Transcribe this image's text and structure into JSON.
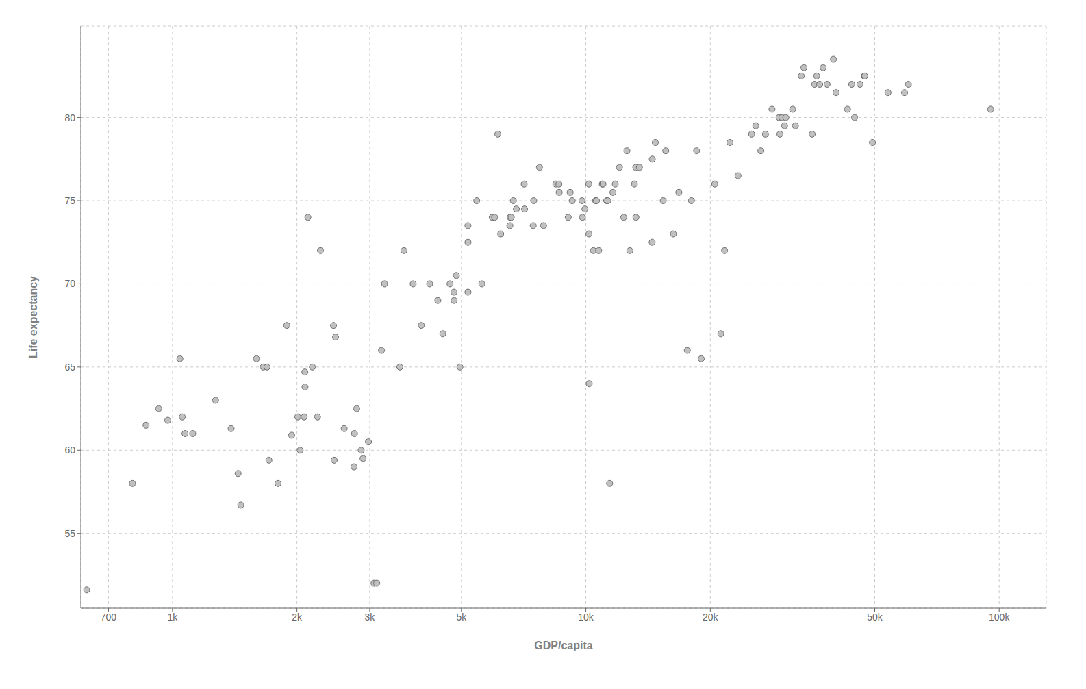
{
  "chart_data": {
    "type": "scatter",
    "xlabel": "GDP/capita",
    "ylabel": "Life expectancy",
    "log": "x",
    "grid": true,
    "color": "#c0c0c0",
    "xlim": [
      600,
      130000
    ],
    "ylim": [
      50.5,
      85.5
    ],
    "xticks": [
      700,
      {
        "value": 1000,
        "label": "1k"
      },
      {
        "value": 2000,
        "label": "2k"
      },
      {
        "value": 3000,
        "label": "3k"
      },
      {
        "value": 5000,
        "label": "5k"
      },
      {
        "value": 10000,
        "label": "10k"
      },
      {
        "value": 20000,
        "label": "20k"
      },
      {
        "value": 50000,
        "label": "50k"
      },
      {
        "value": 100000,
        "label": "100k"
      }
    ],
    "yticks": [
      55,
      60,
      65,
      70,
      75,
      80
    ],
    "x": [
      620,
      800,
      863,
      926,
      974,
      1042,
      1056,
      1072,
      1119,
      1271,
      1386,
      1441,
      1463,
      1596,
      1658,
      1693,
      1711,
      1800,
      1890,
      1942,
      2009,
      2036,
      2082,
      2090,
      2092,
      2126,
      2180,
      2243,
      2280,
      2452,
      2461,
      2480,
      2602,
      2749,
      2756,
      2790,
      2860,
      2890,
      2979,
      3073,
      3119,
      3203,
      3259,
      3548,
      3630,
      3822,
      4000,
      4190,
      4385,
      4508,
      4693,
      4797,
      4800,
      4860,
      4959,
      5186,
      5185,
      5186,
      5445,
      5603,
      5937,
      6018,
      6124,
      6223,
      6549,
      6557,
      6599,
      6677,
      6791,
      7092,
      7107,
      7458,
      7479,
      7723,
      7900,
      8458,
      8605,
      8619,
      9065,
      9162,
      9269,
      9787,
      9809,
      9948,
      10166,
      10172,
      10188,
      10429,
      10556,
      10611,
      10741,
      10957,
      11003,
      11228,
      11305,
      11415,
      11628,
      11778,
      12057,
      12348,
      12570,
      12779,
      13107,
      13206,
      13221,
      13478,
      14467,
      14476,
      14722,
      15389,
      15605,
      16284,
      16788,
      17596,
      18009,
      18533,
      19014,
      20510,
      21209,
      21655,
      22316,
      23348,
      25185,
      25768,
      26505,
      27195,
      28204,
      29341,
      29479,
      29810,
      30246,
      30470,
      31656,
      32135,
      33207,
      33693,
      35278,
      35767,
      36180,
      36797,
      37506,
      38340,
      39724,
      40300,
      42951,
      43983,
      44683,
      46040,
      47143,
      47306,
      49357,
      53821,
      59032,
      60304,
      95335
    ],
    "values": [
      51.6,
      58.0,
      61.5,
      62.5,
      61.8,
      65.5,
      62.0,
      61.0,
      61.0,
      63.0,
      61.3,
      58.6,
      56.7,
      65.5,
      65.0,
      65.0,
      59.4,
      58.0,
      67.5,
      60.9,
      62.0,
      60.0,
      62.0,
      64.7,
      63.8,
      74.0,
      65.0,
      62.0,
      72.0,
      67.5,
      59.4,
      66.8,
      61.3,
      59.0,
      61.0,
      62.5,
      60.0,
      59.5,
      60.5,
      52.0,
      52.0,
      66.0,
      70.0,
      65.0,
      72.0,
      70.0,
      67.5,
      70.0,
      69.0,
      67.0,
      70.0,
      69.5,
      69.0,
      70.5,
      65.0,
      72.5,
      73.5,
      69.5,
      75.0,
      70.0,
      74.0,
      74.0,
      79.0,
      73.0,
      73.5,
      74.0,
      74.0,
      75.0,
      74.5,
      76.0,
      74.5,
      73.5,
      75.0,
      77.0,
      73.5,
      76.0,
      76.0,
      75.5,
      74.0,
      75.5,
      75.0,
      75.0,
      74.0,
      74.5,
      76.0,
      73.0,
      64.0,
      72.0,
      75.0,
      75.0,
      72.0,
      76.0,
      76.0,
      75.0,
      75.0,
      58.0,
      75.5,
      76.0,
      77.0,
      74.0,
      78.0,
      72.0,
      76.0,
      77.0,
      74.0,
      77.0,
      72.5,
      77.5,
      78.5,
      75.0,
      78.0,
      73.0,
      75.5,
      66.0,
      75.0,
      78.0,
      65.5,
      76.0,
      67.0,
      72.0,
      78.5,
      76.5,
      79.0,
      79.5,
      78.0,
      79.0,
      80.5,
      80.0,
      79.0,
      80.0,
      79.5,
      80.0,
      80.5,
      79.5,
      82.5,
      83.0,
      79.0,
      82.0,
      82.5,
      82.0,
      83.0,
      82.0,
      83.5,
      81.5,
      80.5,
      82.0,
      80.0,
      82.0,
      82.5,
      82.5,
      78.5,
      81.5,
      81.5,
      82.0,
      80.5
    ]
  }
}
